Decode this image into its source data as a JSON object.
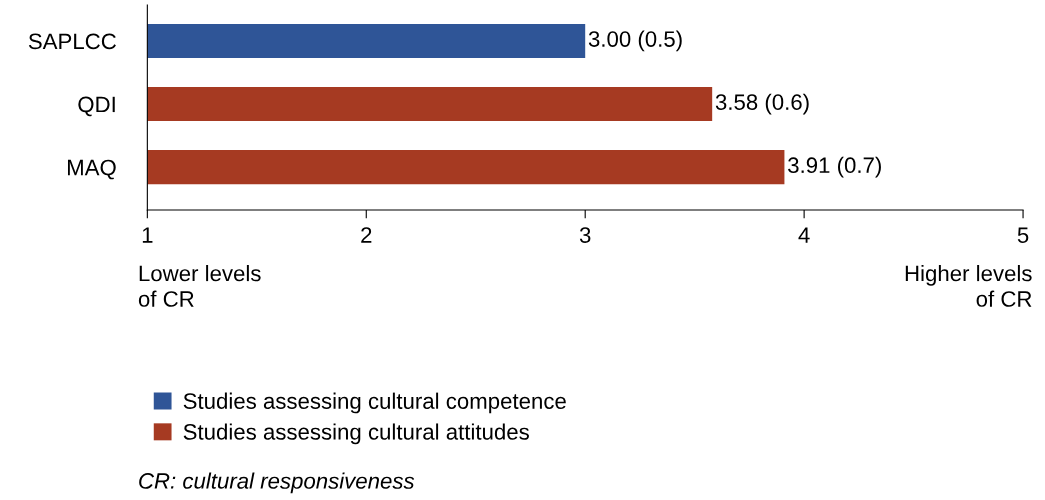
{
  "chart_data": {
    "type": "bar",
    "orientation": "horizontal",
    "categories": [
      "SAPLCC",
      "QDI",
      "MAQ"
    ],
    "series": [
      {
        "name": "Studies assessing cultural competence",
        "color": "#2f5597",
        "values": [
          3.0,
          null,
          null
        ],
        "value_labels": [
          "3.00 (0.5)",
          null,
          null
        ]
      },
      {
        "name": "Studies assessing cultural attitudes",
        "color": "#a63a22",
        "values": [
          null,
          3.58,
          3.91
        ],
        "value_labels": [
          null,
          "3.58 (0.6)",
          "3.91 (0.7)"
        ]
      }
    ],
    "xlim": [
      1,
      5
    ],
    "xticks": [
      1,
      2,
      3,
      4,
      5
    ],
    "grid": false,
    "legend": "bottom left",
    "annotations": [
      "Lower levels\nof CR",
      "Higher levels\nof CR",
      "CR: cultural responsiveness"
    ]
  }
}
